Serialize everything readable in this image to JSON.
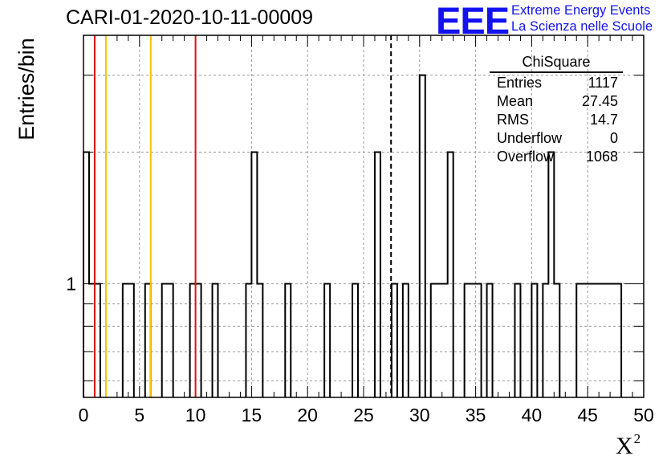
{
  "title": "CARI-01-2020-10-11-00009",
  "logo": {
    "mark": "EEE",
    "line1": "Extreme Energy Events",
    "line2": "La Scienza nelle Scuole"
  },
  "colors": {
    "histogram": "#000000",
    "red_lines": "#dd1111",
    "yellow_lines": "#ffc000",
    "logo": "#1212f0",
    "grid": "#999999"
  },
  "stats": {
    "title": "ChiSquare",
    "rows": [
      {
        "label": "Entries",
        "value": "1117"
      },
      {
        "label": "Mean",
        "value": "27.45"
      },
      {
        "label": "RMS",
        "value": "14.7"
      },
      {
        "label": "Underflow",
        "value": "0"
      },
      {
        "label": "Overflow",
        "value": "1068"
      }
    ]
  },
  "chart_data": {
    "type": "bar",
    "title": "CARI-01-2020-10-11-00009",
    "xlabel": "X²",
    "ylabel": "Entries/bin",
    "xlim": [
      0,
      50
    ],
    "ylim": [
      0.55,
      3.7
    ],
    "yscale": "log",
    "grid": true,
    "legend": "none",
    "x_ticks": [
      "0",
      "5",
      "10",
      "15",
      "20",
      "25",
      "30",
      "35",
      "40",
      "45",
      "50"
    ],
    "y_ticks": [
      "1"
    ],
    "bin_width": 0.5,
    "histogram_bins": [
      {
        "x": 0.0,
        "count": 2
      },
      {
        "x": 0.5,
        "count": 1
      },
      {
        "x": 1.0,
        "count": 1
      },
      {
        "x": 3.5,
        "count": 1
      },
      {
        "x": 4.0,
        "count": 1
      },
      {
        "x": 5.5,
        "count": 1
      },
      {
        "x": 7.0,
        "count": 1
      },
      {
        "x": 7.5,
        "count": 1
      },
      {
        "x": 9.5,
        "count": 1
      },
      {
        "x": 10.0,
        "count": 1
      },
      {
        "x": 11.5,
        "count": 1
      },
      {
        "x": 14.5,
        "count": 1
      },
      {
        "x": 15.0,
        "count": 2
      },
      {
        "x": 15.5,
        "count": 1
      },
      {
        "x": 18.0,
        "count": 1
      },
      {
        "x": 21.5,
        "count": 1
      },
      {
        "x": 24.0,
        "count": 1
      },
      {
        "x": 26.0,
        "count": 2
      },
      {
        "x": 27.5,
        "count": 1
      },
      {
        "x": 28.5,
        "count": 1
      },
      {
        "x": 30.0,
        "count": 3
      },
      {
        "x": 31.0,
        "count": 1
      },
      {
        "x": 31.5,
        "count": 1
      },
      {
        "x": 32.0,
        "count": 1
      },
      {
        "x": 32.5,
        "count": 2
      },
      {
        "x": 34.0,
        "count": 1
      },
      {
        "x": 34.5,
        "count": 1
      },
      {
        "x": 35.0,
        "count": 1
      },
      {
        "x": 36.0,
        "count": 1
      },
      {
        "x": 38.5,
        "count": 1
      },
      {
        "x": 40.0,
        "count": 1
      },
      {
        "x": 41.0,
        "count": 1
      },
      {
        "x": 41.5,
        "count": 2
      },
      {
        "x": 42.0,
        "count": 1
      },
      {
        "x": 44.0,
        "count": 1
      },
      {
        "x": 44.5,
        "count": 1
      },
      {
        "x": 45.0,
        "count": 1
      },
      {
        "x": 45.5,
        "count": 1
      },
      {
        "x": 46.0,
        "count": 1
      },
      {
        "x": 46.5,
        "count": 1
      },
      {
        "x": 47.0,
        "count": 1
      },
      {
        "x": 47.5,
        "count": 1
      }
    ],
    "vertical_lines": [
      {
        "x": 1,
        "color": "red",
        "style": "solid"
      },
      {
        "x": 2,
        "color": "yellow",
        "style": "solid"
      },
      {
        "x": 6,
        "color": "yellow",
        "style": "solid"
      },
      {
        "x": 10,
        "color": "red",
        "style": "solid"
      },
      {
        "x": 27.45,
        "color": "black",
        "style": "dashed"
      }
    ]
  }
}
